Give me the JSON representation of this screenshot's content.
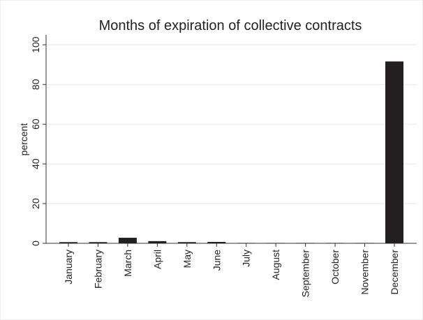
{
  "chart_data": {
    "type": "bar",
    "title": "Months of expiration of collective contracts",
    "y_label": "percent",
    "categories": [
      "January",
      "February",
      "March",
      "April",
      "May",
      "June",
      "July",
      "August",
      "September",
      "October",
      "November",
      "December"
    ],
    "values": [
      0.6,
      0.6,
      2.8,
      1.1,
      0.6,
      0.7,
      0.2,
      0.2,
      0.2,
      0.2,
      0.2,
      91.6
    ],
    "color": "#231f20",
    "ylim": [
      0,
      105
    ],
    "yticks": [
      0,
      20,
      40,
      60,
      80,
      100
    ],
    "grid": true
  }
}
